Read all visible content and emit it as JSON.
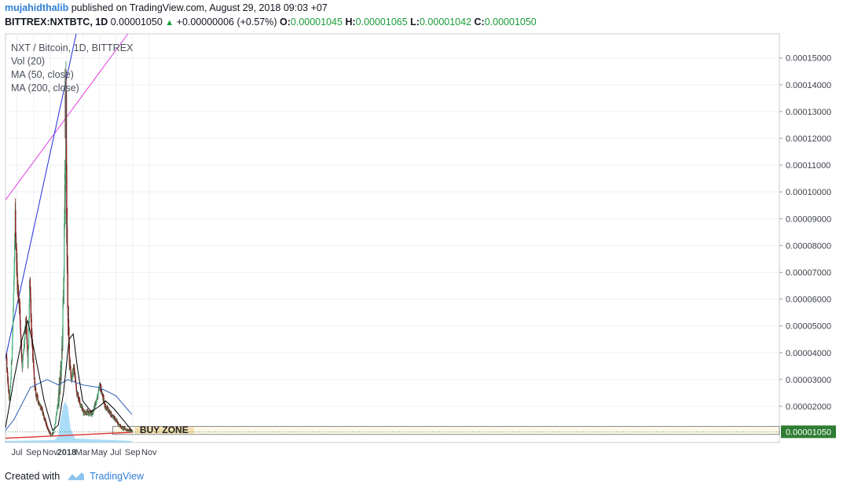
{
  "header": {
    "author": "mujahidthalib",
    "published": "published on TradingView.com, August 29, 2018 09:03 +07",
    "symbol": "BITTREX:NXTBTC, 1D",
    "last": "0.00001050",
    "change": "+0.00000006 (+0.57%)",
    "open_label": "O:",
    "open": "0.00001045",
    "high_label": "H:",
    "high": "0.00001065",
    "low_label": "L:",
    "low": "0.00001042",
    "close_label": "C:",
    "close": "0.00001050"
  },
  "legend": {
    "title": "NXT / Bitcoin, 1D, BITTREX",
    "vol": "Vol (20)",
    "ma50": "MA (50, close)",
    "ma200": "MA (200, close)"
  },
  "footer": {
    "created_with": "Created with",
    "brand": "TradingView"
  },
  "colors": {
    "up": "#53b987",
    "down": "#eb4d5c",
    "candle_down": "#8b1d1d",
    "ma50": "#000000",
    "ma200": "#2a5cb8",
    "volume": "#8fd0f5",
    "pink_trend": "#e040e0",
    "blue_trend": "#1f2fd8",
    "support": "#e03030",
    "buy_zone": "#f5deb0",
    "price_box": "#2e7d32"
  },
  "chart_data": {
    "type": "candlestick",
    "title": "NXT / Bitcoin, 1D, BITTREX",
    "x_ticks": [
      "Jul",
      "Sep",
      "Nov",
      "2018",
      "Mar",
      "May",
      "Jul",
      "Sep",
      "Nov"
    ],
    "y_ticks": [
      "0.00015000",
      "0.00014000",
      "0.00013000",
      "0.00012000",
      "0.00011000",
      "0.00010000",
      "0.00009000",
      "0.00008000",
      "0.00007000",
      "0.00006000",
      "0.00005000",
      "0.00004000",
      "0.00003000",
      "0.00002000"
    ],
    "ylim": [
      6.5e-06,
      0.000159
    ],
    "current_price_label": "0.00001050",
    "current_price": 1.05e-05,
    "annotation": "BUY ZONE",
    "buy_zone": [
      9.5e-06,
      1.25e-05
    ],
    "key_points": [
      {
        "date": "2017-05-20",
        "price": 3.8e-05
      },
      {
        "date": "2017-06-01",
        "price": 2.2e-05
      },
      {
        "date": "2017-06-18",
        "price": 6.8e-05
      },
      {
        "date": "2017-06-22",
        "price": 9e-05,
        "note": "high"
      },
      {
        "date": "2017-07-01",
        "price": 6.4e-05
      },
      {
        "date": "2017-07-08",
        "price": 5.8e-05
      },
      {
        "date": "2017-07-18",
        "price": 3.5e-05
      },
      {
        "date": "2017-08-01",
        "price": 5.2e-05
      },
      {
        "date": "2017-08-08",
        "price": 3.6e-05
      },
      {
        "date": "2017-08-15",
        "price": 6.9e-05
      },
      {
        "date": "2017-08-25",
        "price": 4e-05
      },
      {
        "date": "2017-09-05",
        "price": 2.5e-05
      },
      {
        "date": "2017-10-01",
        "price": 1.8e-05
      },
      {
        "date": "2017-11-01",
        "price": 9e-06
      },
      {
        "date": "2017-11-10",
        "price": 1e-05
      },
      {
        "date": "2017-11-25",
        "price": 2e-05
      },
      {
        "date": "2017-12-10",
        "price": 3.5e-05
      },
      {
        "date": "2017-12-20",
        "price": 8e-05
      },
      {
        "date": "2017-12-26",
        "price": 0.000125,
        "note": "peak"
      },
      {
        "date": "2017-12-29",
        "price": 9e-05
      },
      {
        "date": "2018-01-05",
        "price": 4.5e-05
      },
      {
        "date": "2018-01-15",
        "price": 3e-05
      },
      {
        "date": "2018-01-25",
        "price": 3.4e-05
      },
      {
        "date": "2018-02-05",
        "price": 2.5e-05
      },
      {
        "date": "2018-03-01",
        "price": 1.8e-05
      },
      {
        "date": "2018-04-01",
        "price": 1.7e-05
      },
      {
        "date": "2018-04-25",
        "price": 2.5e-05
      },
      {
        "date": "2018-05-01",
        "price": 2.8e-05
      },
      {
        "date": "2018-05-20",
        "price": 2e-05
      },
      {
        "date": "2018-06-20",
        "price": 1.6e-05
      },
      {
        "date": "2018-07-20",
        "price": 1.2e-05
      },
      {
        "date": "2018-08-29",
        "price": 1.05e-05
      }
    ],
    "ma50": [
      {
        "date": "2017-05-20",
        "value": 1.2e-05
      },
      {
        "date": "2017-06-20",
        "value": 3e-05
      },
      {
        "date": "2017-07-20",
        "value": 4.5e-05
      },
      {
        "date": "2017-08-10",
        "value": 5.2e-05
      },
      {
        "date": "2017-09-05",
        "value": 4e-05
      },
      {
        "date": "2017-10-10",
        "value": 2.2e-05
      },
      {
        "date": "2017-11-10",
        "value": 1.1e-05
      },
      {
        "date": "2017-12-01",
        "value": 1.3e-05
      },
      {
        "date": "2017-12-20",
        "value": 2.5e-05
      },
      {
        "date": "2018-01-10",
        "value": 4.5e-05
      },
      {
        "date": "2018-01-25",
        "value": 4.7e-05
      },
      {
        "date": "2018-02-10",
        "value": 3.4e-05
      },
      {
        "date": "2018-03-01",
        "value": 2.2e-05
      },
      {
        "date": "2018-04-01",
        "value": 1.8e-05
      },
      {
        "date": "2018-05-01",
        "value": 2e-05
      },
      {
        "date": "2018-05-25",
        "value": 2.2e-05
      },
      {
        "date": "2018-06-25",
        "value": 1.9e-05
      },
      {
        "date": "2018-08-05",
        "value": 1.4e-05
      },
      {
        "date": "2018-08-29",
        "value": 1.1e-05
      }
    ],
    "ma200": [
      {
        "date": "2017-05-20",
        "value": 1.1e-05
      },
      {
        "date": "2017-06-20",
        "value": 1.5e-05
      },
      {
        "date": "2017-08-20",
        "value": 2.7e-05
      },
      {
        "date": "2017-10-20",
        "value": 3e-05
      },
      {
        "date": "2017-12-01",
        "value": 2.8e-05
      },
      {
        "date": "2018-01-05",
        "value": 3e-05
      },
      {
        "date": "2018-03-01",
        "value": 2.8e-05
      },
      {
        "date": "2018-05-01",
        "value": 2.7e-05
      },
      {
        "date": "2018-07-01",
        "value": 2.4e-05
      },
      {
        "date": "2018-08-29",
        "value": 1.7e-05
      }
    ],
    "trendlines": [
      {
        "name": "pink",
        "from": {
          "date": "2017-05-20",
          "price": 9.7e-05
        },
        "to": {
          "date": "2018-08-15",
          "price": 0.000159
        }
      },
      {
        "name": "blue",
        "from": {
          "date": "2017-05-20",
          "price": 3.8e-05
        },
        "to": {
          "date": "2018-02-05",
          "price": 0.000159
        }
      },
      {
        "name": "support",
        "from": {
          "date": "2017-05-20",
          "price": 8.1e-06
        },
        "to": {
          "date": "2018-08-29",
          "price": 1.03e-05
        }
      }
    ]
  }
}
